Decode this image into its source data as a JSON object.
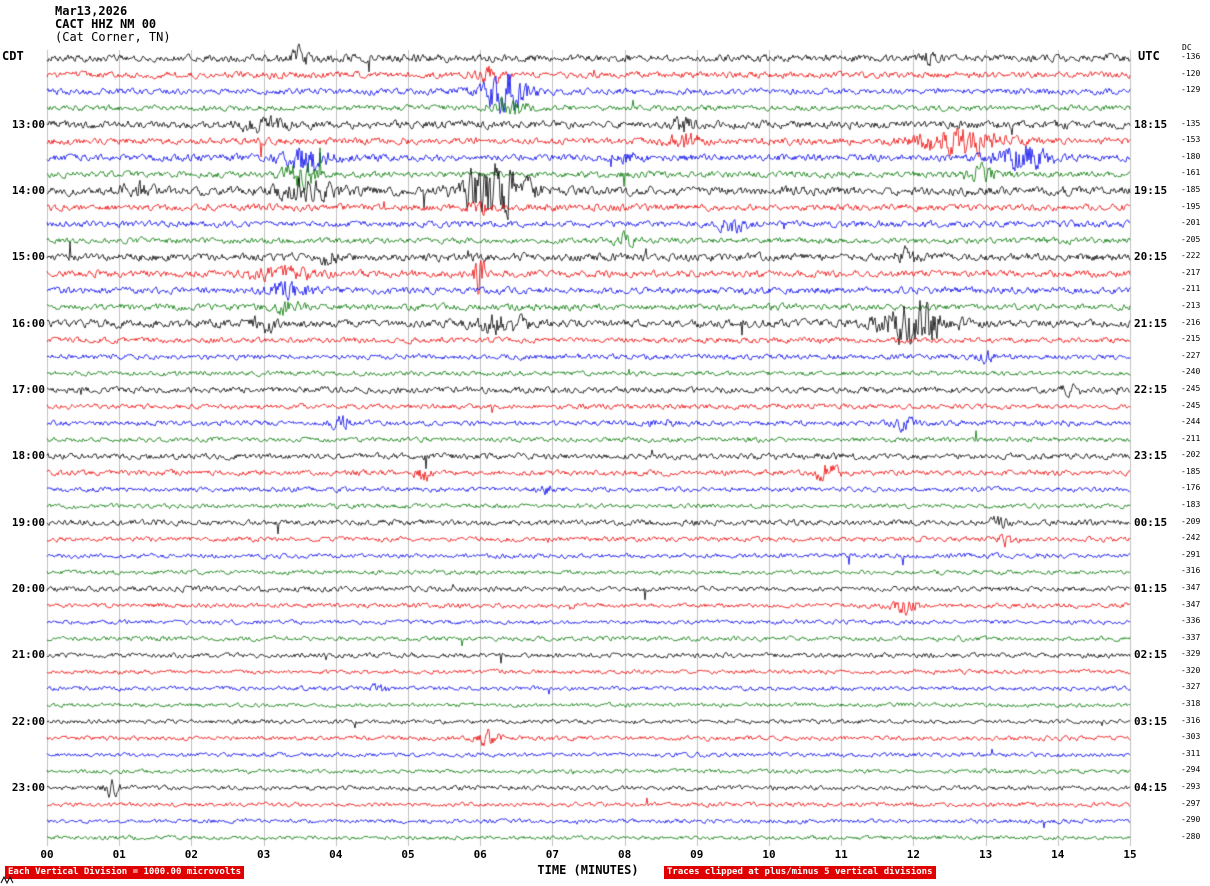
{
  "header": {
    "date": "Mar13,2026",
    "station": "CACT HHZ NM 00",
    "location": "(Cat Corner, TN)",
    "left_tz": "CDT",
    "right_tz": "UTC",
    "dc_label": "DC"
  },
  "footer": {
    "xlabel": "TIME (MINUTES)",
    "left_note": "Each Vertical Division = 1000.00 microvolts",
    "right_note": "Traces clipped at plus/minus 5 vertical divisions"
  },
  "chart_data": {
    "type": "line",
    "title": "Helicorder seismogram CACT HHZ NM 00 (Cat Corner, TN) Mar13,2026",
    "x_ticks": [
      "00",
      "01",
      "02",
      "03",
      "04",
      "05",
      "06",
      "07",
      "08",
      "09",
      "10",
      "11",
      "12",
      "13",
      "14",
      "15"
    ],
    "x_range_minutes": [
      0,
      15
    ],
    "minutes_per_line": 15,
    "lines_per_hour": 4,
    "num_rows": 48,
    "trace_colors": [
      "#000000",
      "#ee0000",
      "#0000ee",
      "#007700"
    ],
    "grid_color": "#c0c0c0",
    "clip_divisions": 5,
    "left_time_labels": [
      {
        "row": 4,
        "label": "13:00"
      },
      {
        "row": 8,
        "label": "14:00"
      },
      {
        "row": 12,
        "label": "15:00"
      },
      {
        "row": 16,
        "label": "16:00"
      },
      {
        "row": 20,
        "label": "17:00"
      },
      {
        "row": 24,
        "label": "18:00"
      },
      {
        "row": 28,
        "label": "19:00"
      },
      {
        "row": 32,
        "label": "20:00"
      },
      {
        "row": 36,
        "label": "21:00"
      },
      {
        "row": 40,
        "label": "22:00"
      },
      {
        "row": 44,
        "label": "23:00"
      }
    ],
    "right_time_labels": [
      {
        "row": 4,
        "label": "18:15"
      },
      {
        "row": 8,
        "label": "19:15"
      },
      {
        "row": 12,
        "label": "20:15"
      },
      {
        "row": 16,
        "label": "21:15"
      },
      {
        "row": 20,
        "label": "22:15"
      },
      {
        "row": 24,
        "label": "23:15"
      },
      {
        "row": 28,
        "label": "00:15"
      },
      {
        "row": 32,
        "label": "01:15"
      },
      {
        "row": 36,
        "label": "02:15"
      },
      {
        "row": 40,
        "label": "03:15"
      },
      {
        "row": 44,
        "label": "04:15"
      }
    ],
    "dc_values": [
      "-136",
      "-120",
      "-129",
      "",
      "-135",
      "-153",
      "-180",
      "-161",
      "-185",
      "-195",
      "-201",
      "-205",
      "-222",
      "-217",
      "-211",
      "-213",
      "-216",
      "-215",
      "-227",
      "-240",
      "-245",
      "-245",
      "-244",
      "-211",
      "-202",
      "-185",
      "-176",
      "-183",
      "-209",
      "-242",
      "-291",
      "-316",
      "-347",
      "-347",
      "-336",
      "-337",
      "-329",
      "-320",
      "-327",
      "-318",
      "-316",
      "-303",
      "-311",
      "-294",
      "-293",
      "-297",
      "-290",
      "-280"
    ],
    "amplitude_profile": [
      3.0,
      2.6,
      2.6,
      2.4,
      3.2,
      2.8,
      2.8,
      2.6,
      3.6,
      2.8,
      2.6,
      2.4,
      3.2,
      2.8,
      2.8,
      2.6,
      3.2,
      2.2,
      2.2,
      2.0,
      2.6,
      2.0,
      2.2,
      2.0,
      2.6,
      2.2,
      2.0,
      1.8,
      2.4,
      2.0,
      1.9,
      1.8,
      2.2,
      1.9,
      1.8,
      1.8,
      2.0,
      1.8,
      1.8,
      1.7,
      1.9,
      1.8,
      1.7,
      1.7,
      1.9,
      1.8,
      1.7,
      1.7
    ],
    "events": [
      {
        "row": 0,
        "minute": 3.5,
        "sigma": 0.08,
        "gain": 2.5
      },
      {
        "row": 0,
        "minute": 12.2,
        "sigma": 0.06,
        "gain": 1.8
      },
      {
        "row": 1,
        "minute": 6.1,
        "sigma": 0.15,
        "gain": 2.0
      },
      {
        "row": 2,
        "minute": 6.35,
        "sigma": 0.22,
        "gain": 6.5
      },
      {
        "row": 3,
        "minute": 6.4,
        "sigma": 0.18,
        "gain": 3.5
      },
      {
        "row": 4,
        "minute": 8.8,
        "sigma": 0.1,
        "gain": 2.0
      },
      {
        "row": 4,
        "minute": 3.0,
        "sigma": 0.25,
        "gain": 1.5
      },
      {
        "row": 5,
        "minute": 12.6,
        "sigma": 0.45,
        "gain": 3.0
      },
      {
        "row": 5,
        "minute": 8.8,
        "sigma": 0.15,
        "gain": 2.0
      },
      {
        "row": 6,
        "minute": 3.6,
        "sigma": 0.22,
        "gain": 4.5
      },
      {
        "row": 6,
        "minute": 13.5,
        "sigma": 0.28,
        "gain": 3.5
      },
      {
        "row": 6,
        "minute": 8.1,
        "sigma": 0.1,
        "gain": 2.0
      },
      {
        "row": 7,
        "minute": 3.5,
        "sigma": 0.18,
        "gain": 4.0
      },
      {
        "row": 7,
        "minute": 12.9,
        "sigma": 0.15,
        "gain": 2.2
      },
      {
        "row": 8,
        "minute": 6.2,
        "sigma": 0.3,
        "gain": 6.0
      },
      {
        "row": 8,
        "minute": 3.6,
        "sigma": 0.3,
        "gain": 2.0
      },
      {
        "row": 8,
        "minute": 1.2,
        "sigma": 0.15,
        "gain": 1.6
      },
      {
        "row": 9,
        "minute": 6.0,
        "sigma": 0.1,
        "gain": 1.8
      },
      {
        "row": 10,
        "minute": 9.5,
        "sigma": 0.15,
        "gain": 2.5
      },
      {
        "row": 11,
        "minute": 8.0,
        "sigma": 0.1,
        "gain": 1.8
      },
      {
        "row": 12,
        "minute": 3.9,
        "sigma": 0.08,
        "gain": 2.0
      },
      {
        "row": 12,
        "minute": 11.9,
        "sigma": 0.1,
        "gain": 1.8
      },
      {
        "row": 13,
        "minute": 6.0,
        "sigma": 0.05,
        "gain": 9.0
      },
      {
        "row": 13,
        "minute": 3.3,
        "sigma": 0.3,
        "gain": 1.8
      },
      {
        "row": 14,
        "minute": 3.35,
        "sigma": 0.2,
        "gain": 2.5
      },
      {
        "row": 15,
        "minute": 3.3,
        "sigma": 0.15,
        "gain": 2.0
      },
      {
        "row": 16,
        "minute": 12.0,
        "sigma": 0.3,
        "gain": 7.0
      },
      {
        "row": 16,
        "minute": 6.3,
        "sigma": 0.25,
        "gain": 2.2
      },
      {
        "row": 16,
        "minute": 3.0,
        "sigma": 0.1,
        "gain": 1.8
      },
      {
        "row": 18,
        "minute": 13.0,
        "sigma": 0.1,
        "gain": 1.6
      },
      {
        "row": 20,
        "minute": 14.2,
        "sigma": 0.1,
        "gain": 1.6
      },
      {
        "row": 22,
        "minute": 4.1,
        "sigma": 0.12,
        "gain": 2.5
      },
      {
        "row": 22,
        "minute": 8.5,
        "sigma": 0.1,
        "gain": 2.0
      },
      {
        "row": 22,
        "minute": 11.9,
        "sigma": 0.12,
        "gain": 2.2
      },
      {
        "row": 25,
        "minute": 5.2,
        "sigma": 0.07,
        "gain": 3.5
      },
      {
        "row": 25,
        "minute": 10.8,
        "sigma": 0.12,
        "gain": 3.0
      },
      {
        "row": 26,
        "minute": 6.9,
        "sigma": 0.08,
        "gain": 2.2
      },
      {
        "row": 28,
        "minute": 13.2,
        "sigma": 0.08,
        "gain": 2.0
      },
      {
        "row": 29,
        "minute": 13.3,
        "sigma": 0.1,
        "gain": 2.2
      },
      {
        "row": 33,
        "minute": 11.9,
        "sigma": 0.12,
        "gain": 3.5
      },
      {
        "row": 38,
        "minute": 4.6,
        "sigma": 0.08,
        "gain": 2.0
      },
      {
        "row": 41,
        "minute": 6.1,
        "sigma": 0.12,
        "gain": 3.5
      },
      {
        "row": 44,
        "minute": 0.9,
        "sigma": 0.07,
        "gain": 3.0
      }
    ]
  }
}
